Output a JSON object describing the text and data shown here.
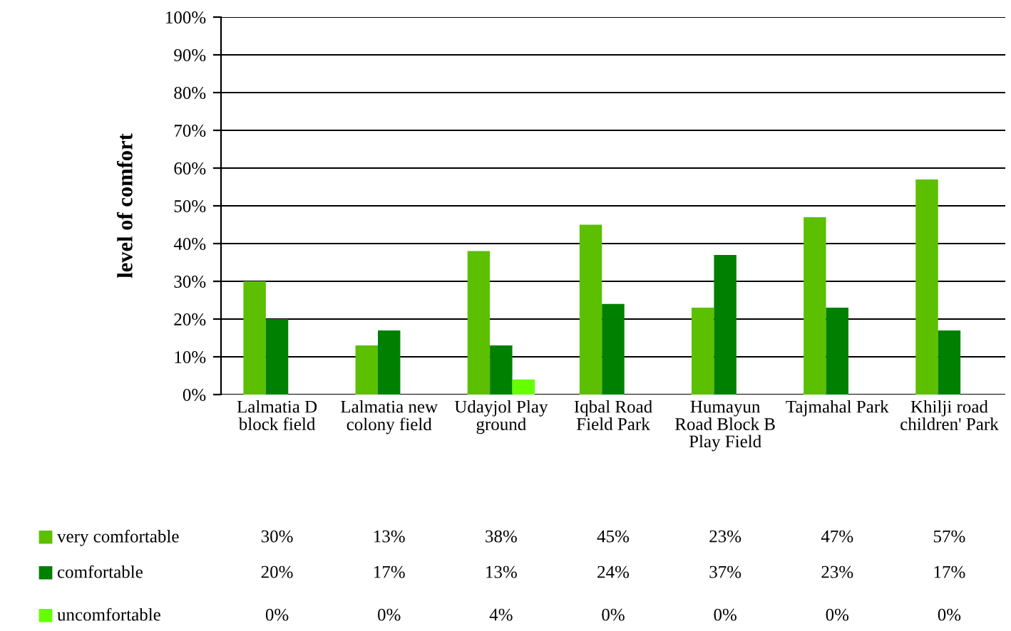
{
  "chart_data": {
    "type": "bar",
    "ylabel": "level of comfort",
    "categories": [
      "Lalmatia D block field",
      "Lalmatia new colony field",
      "Udayjol Play ground",
      "Iqbal Road Field Park",
      "Humayun Road Block B Play Field",
      "Tajmahal Park",
      "Khilji road children' Park"
    ],
    "series": [
      {
        "name": "very comfortable",
        "color": "#5cbf00",
        "values": [
          30,
          13,
          38,
          45,
          23,
          47,
          57
        ],
        "value_labels": [
          "30%",
          "13%",
          "38%",
          "45%",
          "23%",
          "47%",
          "57%"
        ]
      },
      {
        "name": "comfortable",
        "color": "#008000",
        "values": [
          20,
          17,
          13,
          24,
          37,
          23,
          17
        ],
        "value_labels": [
          "20%",
          "17%",
          "13%",
          "24%",
          "37%",
          "23%",
          "17%"
        ]
      },
      {
        "name": "uncomfortable",
        "color": "#66ff00",
        "values": [
          0,
          0,
          4,
          0,
          0,
          0,
          0
        ],
        "value_labels": [
          "0%",
          "0%",
          "4%",
          "0%",
          "0%",
          "0%",
          "0%"
        ]
      }
    ],
    "ylim": [
      0,
      100
    ],
    "yticks": [
      {
        "value": 0,
        "label": "0%"
      },
      {
        "value": 10,
        "label": "10%"
      },
      {
        "value": 20,
        "label": "20%"
      },
      {
        "value": 30,
        "label": "30%"
      },
      {
        "value": 40,
        "label": "40%"
      },
      {
        "value": 50,
        "label": "50%"
      },
      {
        "value": 60,
        "label": "60%"
      },
      {
        "value": 70,
        "label": "70%"
      },
      {
        "value": 80,
        "label": "80%"
      },
      {
        "value": 90,
        "label": "90%"
      },
      {
        "value": 100,
        "label": "100%"
      }
    ],
    "grid": "y",
    "legend": "bottom"
  }
}
